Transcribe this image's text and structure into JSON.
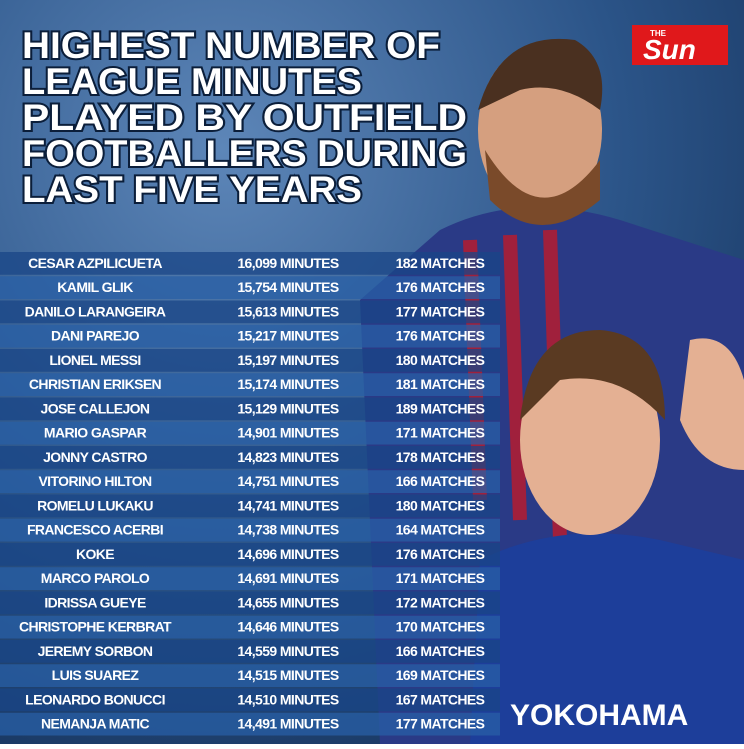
{
  "header": {
    "title": [
      "HIGHEST NUMBER OF",
      "LEAGUE MINUTES",
      "PLAYED BY OUTFIELD",
      "FOOTBALLERS DURING",
      "LAST FIVE YEARS"
    ],
    "logo_small": "THE",
    "logo": "Sun"
  },
  "table": {
    "rows": [
      [
        "CESAR AZPILICUETA",
        "16,099 MINUTES",
        "182 MATCHES"
      ],
      [
        "KAMIL GLIK",
        "15,754 MINUTES",
        "176 MATCHES"
      ],
      [
        "DANILO LARANGEIRA",
        "15,613 MINUTES",
        "177 MATCHES"
      ],
      [
        "DANI PAREJO",
        "15,217 MINUTES",
        "176 MATCHES"
      ],
      [
        "LIONEL MESSI",
        "15,197 MINUTES",
        "180 MATCHES"
      ],
      [
        "CHRISTIAN ERIKSEN",
        "15,174 MINUTES",
        "181 MATCHES"
      ],
      [
        "JOSE CALLEJON",
        "15,129 MINUTES",
        "189 MATCHES"
      ],
      [
        "MARIO GASPAR",
        "14,901 MINUTES",
        "171 MATCHES"
      ],
      [
        "JONNY CASTRO",
        "14,823 MINUTES",
        "178 MATCHES"
      ],
      [
        "VITORINO HILTON",
        "14,751 MINUTES",
        "166 MATCHES"
      ],
      [
        "ROMELU LUKAKU",
        "14,741 MINUTES",
        "180 MATCHES"
      ],
      [
        "FRANCESCO ACERBI",
        "14,738 MINUTES",
        "164 MATCHES"
      ],
      [
        "KOKE",
        "14,696 MINUTES",
        "176 MATCHES"
      ],
      [
        "MARCO PAROLO",
        "14,691 MINUTES",
        "171 MATCHES"
      ],
      [
        "IDRISSA GUEYE",
        "14,655 MINUTES",
        "172 MATCHES"
      ],
      [
        "CHRISTOPHE KERBRAT",
        "14,646 MINUTES",
        "170 MATCHES"
      ],
      [
        "JEREMY SORBON",
        "14,559 MINUTES",
        "166 MATCHES"
      ],
      [
        "LUIS SUAREZ",
        "14,515 MINUTES",
        "169 MATCHES"
      ],
      [
        "LEONARDO BONUCCI",
        "14,510 MINUTES",
        "167 MATCHES"
      ],
      [
        "NEMANJA MATIC",
        "14,491 MINUTES",
        "177 MATCHES"
      ]
    ]
  }
}
